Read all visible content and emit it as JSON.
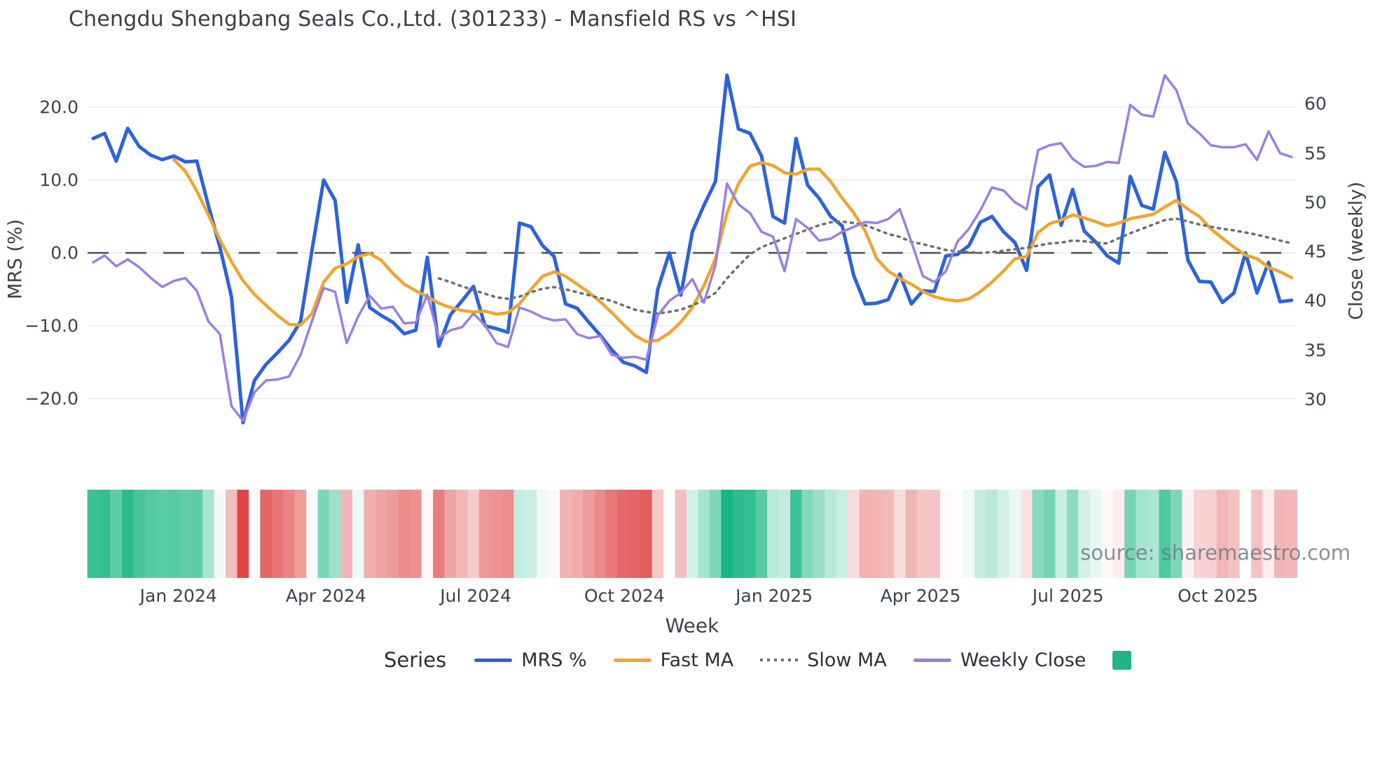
{
  "title": "Chengdu Shengbang Seals Co.,Ltd. (301233) - Mansfield RS vs ^HSI",
  "watermark": "source: sharemaestro.com",
  "axes": {
    "left": {
      "title": "MRS (%)",
      "tick_labels": [
        "20.0",
        "10.0",
        "0.0",
        "−10.0",
        "−20.0"
      ],
      "tick_values": [
        20,
        10,
        0,
        -10,
        -20
      ]
    },
    "right": {
      "title": "Close (weekly)",
      "tick_labels": [
        "60",
        "55",
        "50",
        "45",
        "40",
        "35",
        "30"
      ],
      "tick_values": [
        60,
        55,
        50,
        45,
        40,
        35,
        30
      ]
    },
    "x": {
      "title": "Week",
      "ticks": [
        {
          "label": "Jan 2024",
          "week": 7.4
        },
        {
          "label": "Apr 2024",
          "week": 20.2
        },
        {
          "label": "Jul 2024",
          "week": 33.2
        },
        {
          "label": "Oct 2024",
          "week": 46.1
        },
        {
          "label": "Jan 2025",
          "week": 59.1
        },
        {
          "label": "Apr 2025",
          "week": 71.8
        },
        {
          "label": "Jul 2025",
          "week": 84.6
        },
        {
          "label": "Oct 2025",
          "week": 97.6
        }
      ]
    }
  },
  "legend": {
    "title": "Series",
    "items": [
      {
        "label": "MRS %",
        "swatch": "line",
        "color": "#2b63d9"
      },
      {
        "label": "Fast MA",
        "swatch": "line",
        "color": "#efa52f"
      },
      {
        "label": "Slow MA",
        "swatch": "dotted",
        "color": "#6e6e6e"
      },
      {
        "label": "Weekly Close",
        "swatch": "line",
        "color": "#9b7fe0"
      },
      {
        "label": "",
        "swatch": "square",
        "color": "#1db586"
      }
    ]
  },
  "colors": {
    "mrs": "#2b63d9",
    "fast_ma": "#efa52f",
    "slow_ma": "#6e6e6e",
    "weekly_close": "#9b7fe0",
    "zero_line": "#4a4f57",
    "gridline": "#e8e9ee",
    "heat_positive": "#16b583",
    "heat_negative": "#e04545"
  },
  "chart_data": {
    "type": "line",
    "title": "Chengdu Shengbang Seals Co.,Ltd. (301233) - Mansfield RS vs ^HSI",
    "xlabel": "Week",
    "ylabel_left": "MRS (%)",
    "ylabel_right": "Close (weekly)",
    "x_unit": "week_index",
    "weeks": 105,
    "date_range": "Nov 2023 - Nov 2025",
    "ylim_left": [
      -31.5,
      27.0
    ],
    "ylim_right": [
      29.8,
      63.3
    ],
    "zero_line_left": 0,
    "grid": "horizontal-only",
    "legend_position": "bottom",
    "series": [
      {
        "name": "MRS %",
        "axis": "left",
        "color": "#2b63d9",
        "dash": "solid",
        "width": 5,
        "values": [
          15.7,
          16.4,
          12.6,
          17.1,
          14.6,
          13.4,
          12.8,
          13.3,
          12.5,
          12.6,
          6.5,
          0.8,
          -6.0,
          -23.3,
          -17.5,
          -15.3,
          -13.7,
          -12.0,
          -9.4,
          0.5,
          10.0,
          7.2,
          -6.8,
          1.1,
          -7.5,
          -8.6,
          -9.5,
          -11.1,
          -10.6,
          -0.6,
          -12.8,
          -8.5,
          -6.6,
          -4.6,
          -10.0,
          -10.4,
          -10.9,
          4.1,
          3.6,
          1.0,
          -0.5,
          -7.0,
          -7.6,
          -9.5,
          -11.3,
          -13.3,
          -15.0,
          -15.5,
          -16.4,
          -5.0,
          0.0,
          -5.8,
          2.9,
          6.5,
          9.8,
          24.4,
          17.0,
          16.4,
          13.3,
          5.0,
          4.1,
          15.7,
          9.3,
          7.5,
          5.0,
          3.7,
          -3.1,
          -7.0,
          -6.9,
          -6.4,
          -2.9,
          -7.0,
          -5.2,
          -5.3,
          -0.4,
          -0.2,
          1.0,
          4.2,
          5.0,
          2.9,
          1.4,
          -2.4,
          9.1,
          10.7,
          3.8,
          8.7,
          3.0,
          1.5,
          -0.4,
          -1.4,
          10.5,
          6.5,
          6.0,
          13.8,
          9.8,
          -1.0,
          -3.9,
          -4.0,
          -6.8,
          -5.5,
          0.0,
          -5.5,
          -1.3,
          -6.7,
          -6.5
        ]
      },
      {
        "name": "Fast MA",
        "axis": "left",
        "color": "#efa52f",
        "dash": "solid",
        "width": 4.5,
        "values": [
          null,
          null,
          null,
          null,
          null,
          null,
          null,
          12.8,
          11.2,
          8.5,
          5.2,
          1.8,
          -1.2,
          -3.8,
          -5.7,
          -7.2,
          -8.6,
          -9.8,
          -9.9,
          -8.3,
          -4.0,
          -2.1,
          -1.5,
          -0.5,
          -0.1,
          -1.0,
          -2.8,
          -4.3,
          -5.2,
          -6.0,
          -6.9,
          -7.5,
          -7.9,
          -8.1,
          -8.0,
          -8.4,
          -8.2,
          -7.0,
          -5.0,
          -3.2,
          -2.6,
          -3.2,
          -4.3,
          -5.4,
          -6.7,
          -8.2,
          -9.8,
          -11.3,
          -12.2,
          -12.0,
          -11.0,
          -9.5,
          -7.5,
          -4.5,
          -0.8,
          5.5,
          9.5,
          11.9,
          12.4,
          12.0,
          11.0,
          10.8,
          11.5,
          11.5,
          9.8,
          7.5,
          5.5,
          3.0,
          -0.8,
          -2.5,
          -3.5,
          -4.3,
          -5.3,
          -6.0,
          -6.4,
          -6.6,
          -6.3,
          -5.3,
          -4.0,
          -2.5,
          -0.8,
          -0.5,
          2.8,
          4.0,
          4.5,
          5.2,
          4.8,
          4.3,
          3.7,
          4.1,
          4.7,
          5.0,
          5.3,
          6.3,
          7.2,
          6.0,
          5.0,
          3.3,
          2.0,
          0.8,
          -0.3,
          -0.8,
          -2.0,
          -2.6,
          -3.4
        ]
      },
      {
        "name": "Slow MA",
        "axis": "left",
        "color": "#6e6e6e",
        "dash": "dotted",
        "width": 3.5,
        "values": [
          null,
          null,
          null,
          null,
          null,
          null,
          null,
          null,
          null,
          null,
          null,
          null,
          null,
          null,
          null,
          null,
          null,
          null,
          null,
          null,
          null,
          null,
          null,
          null,
          null,
          null,
          null,
          null,
          null,
          null,
          -3.5,
          -4.0,
          -4.6,
          -5.1,
          -5.6,
          -6.1,
          -6.3,
          -6.0,
          -5.4,
          -4.9,
          -4.7,
          -5.0,
          -5.4,
          -5.8,
          -6.2,
          -6.6,
          -7.2,
          -7.8,
          -8.1,
          -8.3,
          -8.1,
          -7.8,
          -7.2,
          -6.5,
          -5.5,
          -3.5,
          -1.8,
          -0.2,
          0.8,
          1.4,
          2.0,
          2.6,
          3.2,
          3.8,
          4.2,
          4.3,
          4.1,
          3.8,
          3.2,
          2.6,
          2.2,
          1.5,
          1.2,
          0.8,
          0.4,
          0.2,
          0.1,
          0.0,
          0.1,
          0.3,
          0.5,
          0.7,
          1.0,
          1.3,
          1.4,
          1.7,
          1.6,
          1.4,
          1.3,
          2.0,
          2.7,
          3.3,
          3.9,
          4.5,
          4.7,
          4.3,
          3.9,
          3.6,
          3.3,
          3.1,
          2.8,
          2.5,
          2.1,
          1.7,
          1.3
        ]
      },
      {
        "name": "Weekly Close",
        "axis": "right",
        "color": "#9b7fe0",
        "dash": "solid",
        "width": 3.5,
        "values": [
          43.9,
          44.6,
          43.5,
          44.2,
          43.4,
          42.3,
          41.4,
          42.0,
          42.3,
          41.0,
          37.9,
          36.6,
          29.3,
          27.8,
          30.7,
          31.9,
          32.0,
          32.3,
          34.5,
          38.0,
          41.3,
          40.9,
          35.7,
          38.4,
          40.5,
          39.2,
          39.4,
          37.7,
          37.8,
          40.6,
          36.2,
          37.0,
          37.3,
          38.7,
          37.5,
          35.7,
          35.3,
          39.3,
          38.9,
          38.3,
          38.0,
          38.1,
          36.6,
          36.2,
          36.4,
          34.5,
          34.2,
          34.3,
          34.0,
          38.5,
          40.0,
          40.8,
          42.2,
          39.8,
          43.6,
          51.9,
          49.8,
          48.9,
          47.0,
          46.5,
          43.0,
          48.3,
          47.4,
          46.1,
          46.3,
          47.0,
          47.5,
          48.0,
          47.9,
          48.3,
          49.3,
          46.0,
          42.5,
          41.9,
          43.0,
          46.0,
          47.3,
          49.2,
          51.5,
          51.2,
          50.0,
          49.3,
          55.3,
          55.8,
          56.0,
          54.4,
          53.6,
          53.7,
          54.1,
          54.0,
          59.9,
          58.9,
          58.7,
          62.9,
          61.4,
          58.0,
          57.0,
          55.8,
          55.6,
          55.6,
          55.9,
          54.3,
          57.2,
          55.0,
          54.6
        ]
      }
    ],
    "heatmap": {
      "keyed_to": "MRS %",
      "positive_color": "#16b583",
      "negative_color": "#e04545",
      "missing_weeks": [
        14
      ],
      "scale_abs_max": 19
    }
  }
}
